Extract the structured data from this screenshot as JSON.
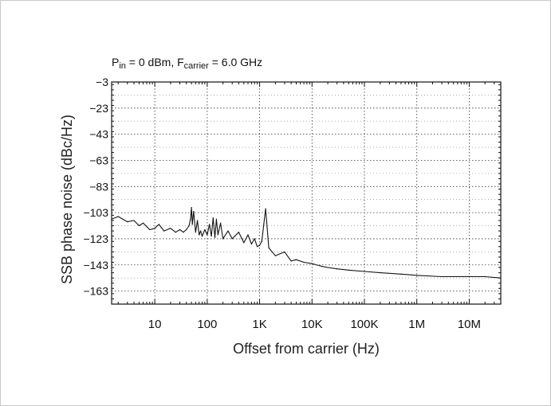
{
  "chart_data": {
    "type": "line",
    "title": "",
    "annotation": {
      "p": "P",
      "p_sub": "in",
      "mid": " = 0 dBm, F",
      "f_sub": "carrier",
      "end": " = 6.0 GHz"
    },
    "xlabel": "Offset from carrier (Hz)",
    "ylabel": "SSB phase noise (dBc/Hz)",
    "xscale": "log",
    "xlim": [
      1.5,
      40000000
    ],
    "ylim": [
      -173,
      -3
    ],
    "x_ticks": [
      10,
      100,
      1000,
      10000,
      100000,
      1000000,
      10000000
    ],
    "x_tick_labels": [
      "10",
      "100",
      "1K",
      "10K",
      "100K",
      "1M",
      "10M"
    ],
    "y_ticks": [
      -3,
      -23,
      -43,
      -63,
      -83,
      -103,
      -123,
      -143,
      -163
    ],
    "y_tick_labels": [
      "−3",
      "−23",
      "−43",
      "−63",
      "−83",
      "−103",
      "−123",
      "−143",
      "−163"
    ],
    "grid": true,
    "series": [
      {
        "color": "#111111",
        "x": [
          1.5,
          2,
          3,
          4,
          5,
          6,
          8,
          10,
          12,
          15,
          20,
          25,
          30,
          35,
          40,
          45,
          48,
          50,
          52,
          55,
          60,
          65,
          70,
          75,
          80,
          90,
          100,
          110,
          120,
          130,
          140,
          150,
          160,
          180,
          200,
          250,
          300,
          400,
          500,
          600,
          700,
          800,
          900,
          1000,
          1100,
          1200,
          1300,
          1500,
          2000,
          3000,
          4000,
          5000,
          7000,
          10000,
          15000,
          20000,
          30000,
          50000,
          100000,
          200000,
          500000,
          1000000,
          3000000,
          10000000,
          20000000,
          40000000
        ],
        "y": [
          -108,
          -106,
          -110,
          -109,
          -113,
          -111,
          -116,
          -115,
          -112,
          -117,
          -115,
          -118,
          -116,
          -118,
          -116,
          -113,
          -108,
          -99,
          -112,
          -102,
          -118,
          -109,
          -120,
          -117,
          -121,
          -116,
          -120,
          -112,
          -121,
          -107,
          -122,
          -108,
          -120,
          -111,
          -123,
          -117,
          -123,
          -118,
          -126,
          -120,
          -127,
          -123,
          -129,
          -128,
          -125,
          -112,
          -100,
          -130,
          -136,
          -133,
          -140,
          -139,
          -141,
          -142,
          -144,
          -145,
          -146,
          -147,
          -148,
          -149,
          -150,
          -151,
          -152,
          -152,
          -152,
          -153
        ]
      }
    ]
  }
}
